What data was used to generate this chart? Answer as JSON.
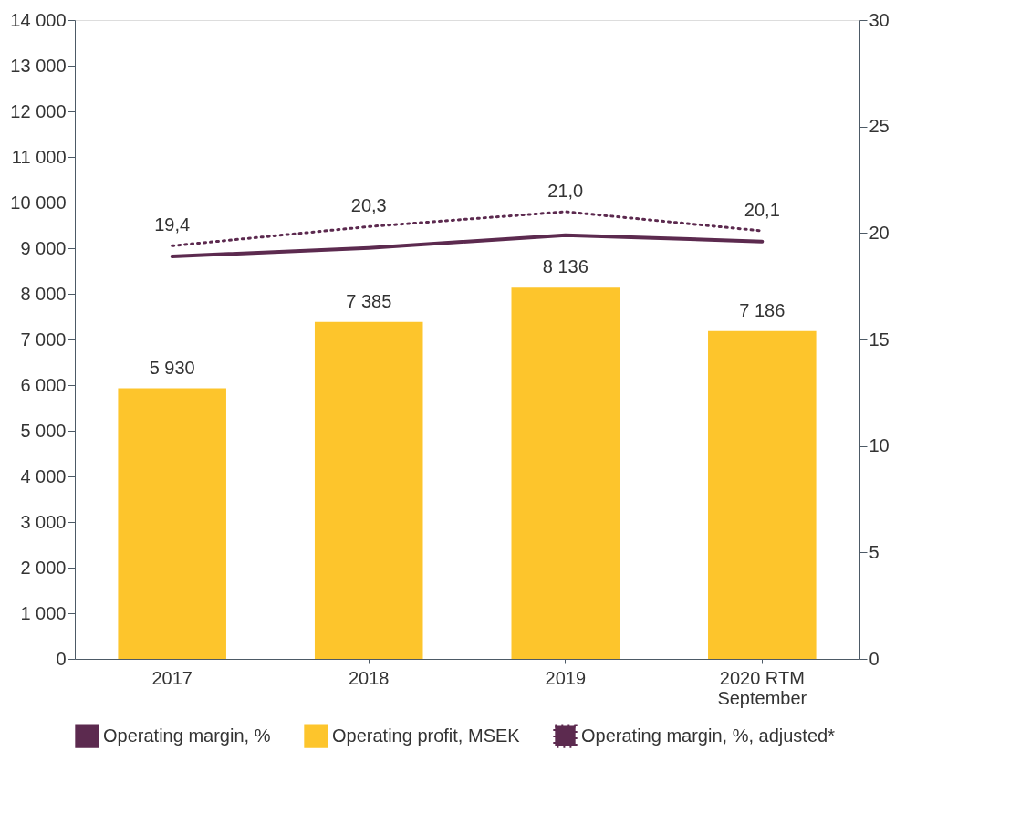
{
  "chart_data": {
    "type": "bar",
    "categories": [
      "2017",
      "2018",
      "2019",
      "2020 RTM\nSeptember"
    ],
    "series": [
      {
        "name": "Operating margin, %",
        "type": "line",
        "axis": "y2",
        "color": "#5c2a4f",
        "line_style": "solid",
        "values": [
          18.9,
          19.3,
          19.9,
          19.6
        ]
      },
      {
        "name": "Operating profit, MSEK",
        "color": "#fdc52c",
        "values": [
          5930,
          7385,
          8136,
          7186
        ],
        "value_labels": [
          "5 930",
          "7 385",
          "8 136",
          "7 186"
        ]
      },
      {
        "name": "Operating margin, %, adjusted*",
        "type": "line",
        "axis": "y2",
        "color": "#5c2a4f",
        "line_style": "dotted",
        "values": [
          19.4,
          20.3,
          21.0,
          20.1
        ],
        "value_labels": [
          "19,4",
          "20,3",
          "21,0",
          "20,1"
        ]
      }
    ],
    "ylim": [
      0,
      14000
    ],
    "yticks": [
      0,
      {
        "value": 1000,
        "label": "1 000"
      },
      {
        "value": 2000,
        "label": "2 000"
      },
      {
        "value": 3000,
        "label": "3 000"
      },
      {
        "value": 4000,
        "label": "4 000"
      },
      {
        "value": 5000,
        "label": "5 000"
      },
      {
        "value": 6000,
        "label": "6 000"
      },
      {
        "value": 7000,
        "label": "7 000"
      },
      {
        "value": 8000,
        "label": "8 000"
      },
      {
        "value": 9000,
        "label": "9 000"
      },
      {
        "value": 10000,
        "label": "10 000"
      },
      {
        "value": 11000,
        "label": "11 000"
      },
      {
        "value": 12000,
        "label": "12 000"
      },
      {
        "value": 13000,
        "label": "13 000"
      },
      {
        "value": 14000,
        "label": "14 000"
      }
    ],
    "y2lim": [
      0,
      30
    ],
    "y2ticks": [
      0,
      5,
      10,
      15,
      20,
      25,
      30
    ],
    "grid": false,
    "legend": "bottom"
  }
}
